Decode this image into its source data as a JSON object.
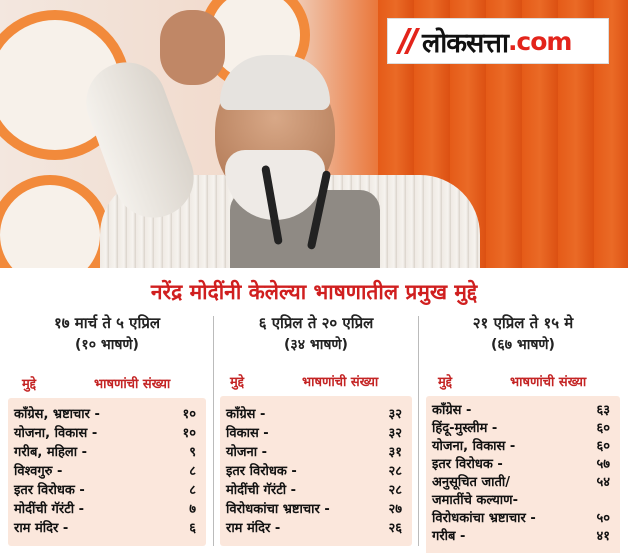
{
  "logo": {
    "main": "लोकसत्ता",
    "suffix": ".com"
  },
  "headline": "नरेंद्र मोदींनी केलेल्या भाषणातील प्रमुख मुद्दे",
  "columns": [
    {
      "period": "१७ मार्च ते ५ एप्रिल",
      "speeches": "(१० भाषणे)",
      "head_left": "मुद्दे",
      "head_right": "भाषणांची संख्या",
      "rows": [
        {
          "label": "काँग्रेस, भ्रष्टाचार -",
          "count": "१०"
        },
        {
          "label": "योजना, विकास -",
          "count": "१०"
        },
        {
          "label": "गरीब, महिला -",
          "count": "९"
        },
        {
          "label": "विश्वगुरु -",
          "count": "८"
        },
        {
          "label": "इतर विरोधक -",
          "count": "८"
        },
        {
          "label": "मोदींची गॅरंटी -",
          "count": "७"
        },
        {
          "label": "राम मंदिर -",
          "count": "६"
        }
      ]
    },
    {
      "period": "६ एप्रिल ते २० एप्रिल",
      "speeches": "(३४ भाषणे)",
      "head_left": "मुद्दे",
      "head_right": "भाषणांची संख्या",
      "rows": [
        {
          "label": "काँग्रेस -",
          "count": "३२"
        },
        {
          "label": "विकास -",
          "count": "३२"
        },
        {
          "label": "योजना -",
          "count": "३१"
        },
        {
          "label": "इतर विरोधक -",
          "count": "२८"
        },
        {
          "label": "मोदींची गॅरंटी -",
          "count": "२८"
        },
        {
          "label": "विरोधकांचा भ्रष्टाचार -",
          "count": "२७"
        },
        {
          "label": "राम मंदिर -",
          "count": "२६"
        }
      ]
    },
    {
      "period": "२१ एप्रिल ते १५ मे",
      "speeches": "(६७ भाषणे)",
      "head_left": "मुद्दे",
      "head_right": "भाषणांची संख्या",
      "rows": [
        {
          "label": "काँग्रेस -",
          "count": "६३"
        },
        {
          "label": "हिंदू-मुस्लीम -",
          "count": "६०"
        },
        {
          "label": "योजना, विकास -",
          "count": "६०"
        },
        {
          "label": "इतर विरोधक -",
          "count": "५७"
        },
        {
          "label": "अनुसूचित जाती/",
          "count": "५४"
        },
        {
          "label": "जमातींचे कल्याण-",
          "count": ""
        },
        {
          "label": "विरोधकांचा भ्रष्टाचार -",
          "count": "५०"
        },
        {
          "label": "गरीब -",
          "count": "४१"
        }
      ]
    }
  ]
}
